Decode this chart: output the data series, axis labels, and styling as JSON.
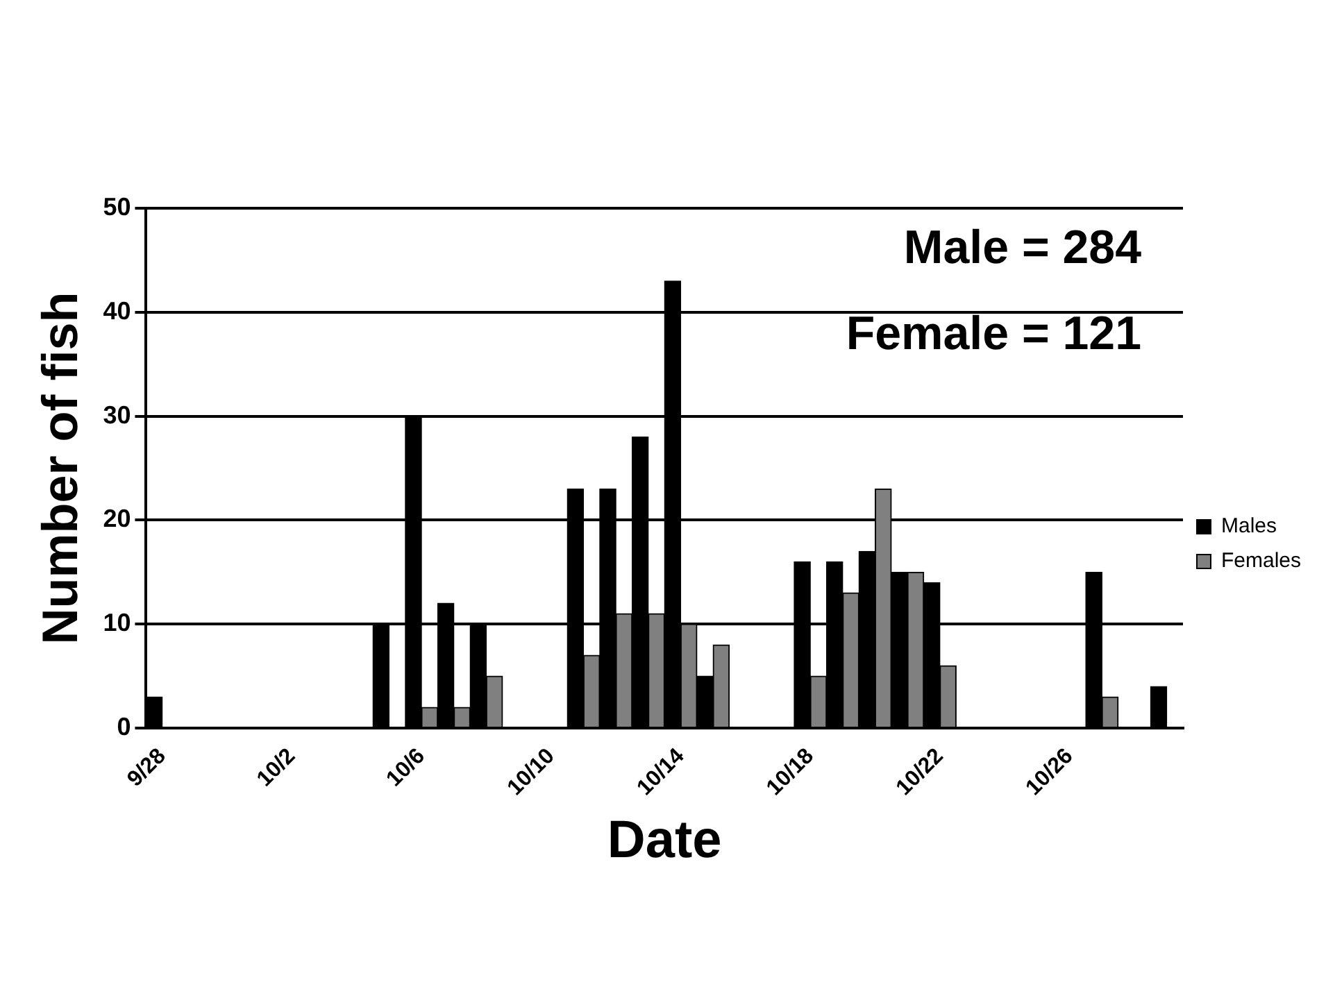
{
  "chart_data": {
    "type": "bar",
    "xlabel": "Date",
    "ylabel": "Number of fish",
    "categories": [
      "9/28",
      null,
      null,
      null,
      "10/2",
      null,
      null,
      null,
      "10/6",
      null,
      null,
      null,
      "10/10",
      null,
      null,
      null,
      "10/14",
      null,
      null,
      null,
      "10/18",
      null,
      null,
      null,
      "10/22",
      null,
      null,
      null,
      "10/26",
      null,
      null,
      null
    ],
    "series": [
      {
        "name": "Males",
        "color": "#000000",
        "values": [
          3,
          0,
          0,
          0,
          0,
          0,
          0,
          10,
          30,
          12,
          10,
          0,
          0,
          23,
          23,
          28,
          43,
          5,
          0,
          0,
          16,
          16,
          17,
          15,
          14,
          0,
          0,
          0,
          0,
          15,
          0,
          4
        ]
      },
      {
        "name": "Females",
        "color": "#808080",
        "values": [
          0,
          0,
          0,
          0,
          0,
          0,
          0,
          0,
          2,
          2,
          5,
          0,
          0,
          7,
          11,
          11,
          10,
          8,
          0,
          0,
          5,
          13,
          23,
          15,
          6,
          0,
          0,
          0,
          0,
          3,
          0,
          0
        ]
      }
    ],
    "ylim": [
      0,
      50
    ],
    "yticks": [
      0,
      10,
      20,
      30,
      40,
      50
    ],
    "grid": "y",
    "legend": "right",
    "annotations": [
      "Male = 284",
      "Female = 121"
    ]
  }
}
